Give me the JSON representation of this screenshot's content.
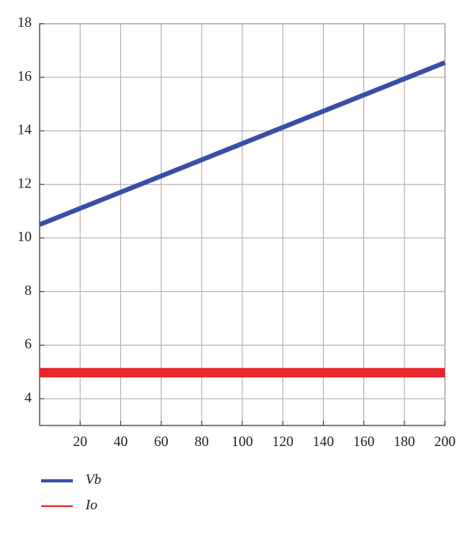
{
  "chart_data": {
    "type": "line",
    "x": [
      0,
      200
    ],
    "series": [
      {
        "name": "Vb",
        "color": "#3b4ea6",
        "values": [
          10.5,
          16.55
        ]
      },
      {
        "name": "Io",
        "color": "#e8262b",
        "values": [
          4.97,
          4.97
        ]
      }
    ],
    "xlim": [
      0,
      200
    ],
    "xticks": [
      20,
      40,
      60,
      80,
      100,
      120,
      140,
      160,
      180,
      200
    ],
    "ylim": [
      3,
      18
    ],
    "yticks": [
      4,
      6,
      8,
      10,
      12,
      14,
      16,
      18
    ],
    "grid": true,
    "legend": "bottom"
  }
}
